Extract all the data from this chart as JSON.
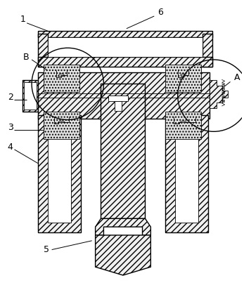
{
  "bg_color": "#ffffff",
  "figsize": [
    3.47,
    4.13
  ],
  "dpi": 100,
  "lw": 1.0,
  "lw_thin": 0.6,
  "fc_hatch": "#f0f0f0",
  "fc_white": "#ffffff",
  "fc_dot": "#e0e0e0"
}
